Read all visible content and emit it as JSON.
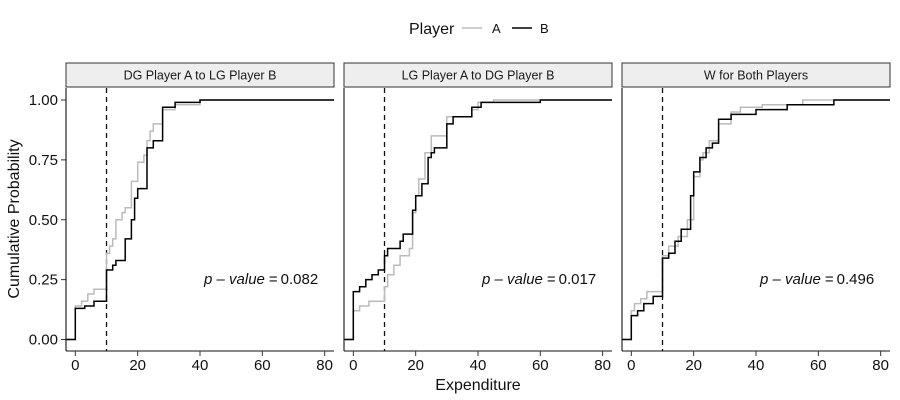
{
  "chart_data": {
    "type": "line",
    "step": true,
    "legend": {
      "title": "Player",
      "position": "top",
      "entries": [
        {
          "name": "A",
          "color": "#bbbbbb"
        },
        {
          "name": "B",
          "color": "#000000"
        }
      ]
    },
    "xlabel": "Expenditure",
    "ylabel": "Cumulative Probability",
    "xlim": [
      -3,
      83
    ],
    "ylim": [
      -0.04,
      1.04
    ],
    "x_ticks": [
      0,
      20,
      40,
      60,
      80
    ],
    "y_ticks": [
      0.0,
      0.25,
      0.5,
      0.75,
      1.0
    ],
    "y_tick_labels": [
      "0.00",
      "0.25",
      "0.50",
      "0.75",
      "1.00"
    ],
    "grid": false,
    "reference_line": {
      "x": 10,
      "style": "dashed"
    },
    "p_value_label": "p – value",
    "panels": [
      {
        "title": "DG Player A to LG Player B",
        "p_value": "0.082",
        "series": [
          {
            "name": "A",
            "points": [
              [
                -3,
                0
              ],
              [
                0,
                0
              ],
              [
                0,
                0.14
              ],
              [
                2,
                0.14
              ],
              [
                2,
                0.16
              ],
              [
                4,
                0.16
              ],
              [
                4,
                0.19
              ],
              [
                6,
                0.19
              ],
              [
                6,
                0.21
              ],
              [
                10,
                0.21
              ],
              [
                10,
                0.36
              ],
              [
                11,
                0.36
              ],
              [
                11,
                0.39
              ],
              [
                12,
                0.39
              ],
              [
                12,
                0.42
              ],
              [
                13,
                0.42
              ],
              [
                13,
                0.5
              ],
              [
                15,
                0.5
              ],
              [
                15,
                0.53
              ],
              [
                16,
                0.53
              ],
              [
                16,
                0.55
              ],
              [
                18,
                0.55
              ],
              [
                18,
                0.66
              ],
              [
                20,
                0.66
              ],
              [
                20,
                0.74
              ],
              [
                22,
                0.74
              ],
              [
                22,
                0.77
              ],
              [
                23,
                0.77
              ],
              [
                23,
                0.83
              ],
              [
                24,
                0.83
              ],
              [
                24,
                0.87
              ],
              [
                25,
                0.87
              ],
              [
                25,
                0.9
              ],
              [
                28,
                0.9
              ],
              [
                28,
                0.96
              ],
              [
                32,
                0.96
              ],
              [
                32,
                0.98
              ],
              [
                40,
                0.98
              ],
              [
                40,
                1.0
              ],
              [
                83,
                1.0
              ]
            ]
          },
          {
            "name": "B",
            "points": [
              [
                -3,
                0
              ],
              [
                0,
                0
              ],
              [
                0,
                0.13
              ],
              [
                3,
                0.13
              ],
              [
                3,
                0.14
              ],
              [
                6,
                0.14
              ],
              [
                6,
                0.16
              ],
              [
                10,
                0.16
              ],
              [
                10,
                0.29
              ],
              [
                12,
                0.29
              ],
              [
                12,
                0.31
              ],
              [
                13,
                0.31
              ],
              [
                13,
                0.33
              ],
              [
                16,
                0.33
              ],
              [
                16,
                0.42
              ],
              [
                18,
                0.42
              ],
              [
                18,
                0.5
              ],
              [
                19,
                0.5
              ],
              [
                19,
                0.59
              ],
              [
                20,
                0.59
              ],
              [
                20,
                0.63
              ],
              [
                23,
                0.63
              ],
              [
                23,
                0.8
              ],
              [
                25,
                0.8
              ],
              [
                25,
                0.83
              ],
              [
                28,
                0.83
              ],
              [
                28,
                0.97
              ],
              [
                32,
                0.97
              ],
              [
                32,
                0.99
              ],
              [
                40,
                0.99
              ],
              [
                40,
                1.0
              ],
              [
                83,
                1.0
              ]
            ]
          }
        ]
      },
      {
        "title": "LG Player A to DG Player B",
        "p_value": "0.017",
        "series": [
          {
            "name": "A",
            "points": [
              [
                -3,
                0
              ],
              [
                0,
                0
              ],
              [
                0,
                0.12
              ],
              [
                2,
                0.12
              ],
              [
                2,
                0.14
              ],
              [
                5,
                0.14
              ],
              [
                5,
                0.16
              ],
              [
                10,
                0.16
              ],
              [
                10,
                0.22
              ],
              [
                11,
                0.22
              ],
              [
                11,
                0.27
              ],
              [
                13,
                0.27
              ],
              [
                13,
                0.31
              ],
              [
                15,
                0.31
              ],
              [
                15,
                0.35
              ],
              [
                18,
                0.35
              ],
              [
                18,
                0.38
              ],
              [
                19,
                0.38
              ],
              [
                19,
                0.53
              ],
              [
                20,
                0.53
              ],
              [
                20,
                0.6
              ],
              [
                21,
                0.6
              ],
              [
                21,
                0.67
              ],
              [
                23,
                0.67
              ],
              [
                23,
                0.78
              ],
              [
                25,
                0.78
              ],
              [
                25,
                0.85
              ],
              [
                30,
                0.85
              ],
              [
                30,
                0.93
              ],
              [
                38,
                0.93
              ],
              [
                38,
                0.96
              ],
              [
                40,
                0.96
              ],
              [
                40,
                0.99
              ],
              [
                45,
                0.99
              ],
              [
                45,
                1.0
              ],
              [
                83,
                1.0
              ]
            ]
          },
          {
            "name": "B",
            "points": [
              [
                -3,
                0
              ],
              [
                0,
                0
              ],
              [
                0,
                0.2
              ],
              [
                2,
                0.2
              ],
              [
                2,
                0.22
              ],
              [
                4,
                0.22
              ],
              [
                4,
                0.25
              ],
              [
                6,
                0.25
              ],
              [
                6,
                0.27
              ],
              [
                8,
                0.27
              ],
              [
                8,
                0.29
              ],
              [
                10,
                0.29
              ],
              [
                10,
                0.35
              ],
              [
                11,
                0.35
              ],
              [
                11,
                0.38
              ],
              [
                15,
                0.38
              ],
              [
                15,
                0.41
              ],
              [
                16,
                0.41
              ],
              [
                16,
                0.44
              ],
              [
                19,
                0.44
              ],
              [
                19,
                0.54
              ],
              [
                20,
                0.54
              ],
              [
                20,
                0.6
              ],
              [
                22,
                0.6
              ],
              [
                22,
                0.65
              ],
              [
                24,
                0.65
              ],
              [
                24,
                0.76
              ],
              [
                25,
                0.76
              ],
              [
                25,
                0.78
              ],
              [
                26,
                0.78
              ],
              [
                26,
                0.8
              ],
              [
                30,
                0.8
              ],
              [
                30,
                0.9
              ],
              [
                32,
                0.9
              ],
              [
                32,
                0.93
              ],
              [
                38,
                0.93
              ],
              [
                38,
                0.97
              ],
              [
                41,
                0.97
              ],
              [
                41,
                0.99
              ],
              [
                60,
                0.99
              ],
              [
                60,
                1.0
              ],
              [
                83,
                1.0
              ]
            ]
          }
        ]
      },
      {
        "title": "W for Both Players",
        "p_value": "0.496",
        "series": [
          {
            "name": "A",
            "points": [
              [
                -3,
                0
              ],
              [
                0,
                0
              ],
              [
                0,
                0.12
              ],
              [
                1,
                0.12
              ],
              [
                1,
                0.15
              ],
              [
                3,
                0.15
              ],
              [
                3,
                0.17
              ],
              [
                5,
                0.17
              ],
              [
                5,
                0.2
              ],
              [
                10,
                0.2
              ],
              [
                10,
                0.35
              ],
              [
                12,
                0.35
              ],
              [
                12,
                0.39
              ],
              [
                15,
                0.39
              ],
              [
                15,
                0.43
              ],
              [
                18,
                0.43
              ],
              [
                18,
                0.5
              ],
              [
                20,
                0.5
              ],
              [
                20,
                0.68
              ],
              [
                22,
                0.68
              ],
              [
                22,
                0.75
              ],
              [
                23,
                0.75
              ],
              [
                23,
                0.78
              ],
              [
                25,
                0.78
              ],
              [
                25,
                0.83
              ],
              [
                28,
                0.83
              ],
              [
                28,
                0.9
              ],
              [
                32,
                0.9
              ],
              [
                32,
                0.95
              ],
              [
                35,
                0.95
              ],
              [
                35,
                0.97
              ],
              [
                42,
                0.97
              ],
              [
                42,
                0.98
              ],
              [
                55,
                0.98
              ],
              [
                55,
                1.0
              ],
              [
                83,
                1.0
              ]
            ]
          },
          {
            "name": "B",
            "points": [
              [
                -3,
                0
              ],
              [
                0,
                0
              ],
              [
                0,
                0.1
              ],
              [
                2,
                0.1
              ],
              [
                2,
                0.12
              ],
              [
                4,
                0.12
              ],
              [
                4,
                0.15
              ],
              [
                7,
                0.15
              ],
              [
                7,
                0.18
              ],
              [
                10,
                0.18
              ],
              [
                10,
                0.34
              ],
              [
                12,
                0.34
              ],
              [
                12,
                0.36
              ],
              [
                14,
                0.36
              ],
              [
                14,
                0.41
              ],
              [
                16,
                0.41
              ],
              [
                16,
                0.46
              ],
              [
                19,
                0.46
              ],
              [
                19,
                0.6
              ],
              [
                20,
                0.6
              ],
              [
                20,
                0.7
              ],
              [
                22,
                0.7
              ],
              [
                22,
                0.76
              ],
              [
                24,
                0.76
              ],
              [
                24,
                0.8
              ],
              [
                26,
                0.8
              ],
              [
                26,
                0.82
              ],
              [
                28,
                0.82
              ],
              [
                28,
                0.92
              ],
              [
                32,
                0.92
              ],
              [
                32,
                0.94
              ],
              [
                40,
                0.94
              ],
              [
                40,
                0.96
              ],
              [
                50,
                0.96
              ],
              [
                50,
                0.98
              ],
              [
                65,
                0.98
              ],
              [
                65,
                1.0
              ],
              [
                83,
                1.0
              ]
            ]
          }
        ]
      }
    ]
  }
}
